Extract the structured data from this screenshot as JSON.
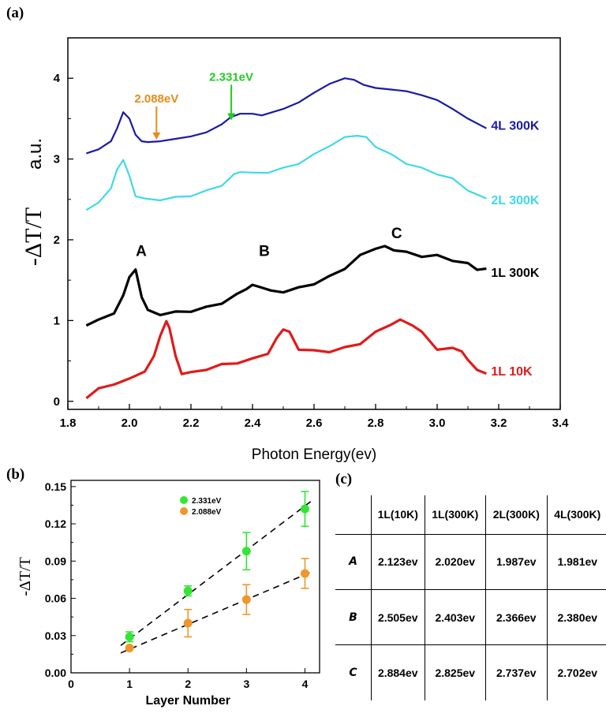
{
  "panel_labels": {
    "a": "(a)",
    "b": "(b)",
    "c": "(c)"
  },
  "chart_data": [
    {
      "type": "line",
      "panel": "(a)",
      "xlabel": "Photon Energy(ev)",
      "ylabel": "-ΔT/T",
      "ylabel_unit": "a.u.",
      "xlim": [
        1.8,
        3.4
      ],
      "ylim": [
        -0.1,
        4.5
      ],
      "xticks": [
        "1.8",
        "2.0",
        "2.2",
        "2.4",
        "2.6",
        "2.8",
        "3.0",
        "3.2",
        "3.4"
      ],
      "yticks": [
        "0",
        "1",
        "2",
        "3",
        "4"
      ],
      "series": [
        {
          "name": "4L 300K",
          "color": "#1a1aa6",
          "x": [
            1.86,
            1.9,
            1.94,
            1.96,
            1.98,
            2.0,
            2.02,
            2.04,
            2.06,
            2.1,
            2.15,
            2.2,
            2.25,
            2.3,
            2.33,
            2.36,
            2.4,
            2.43,
            2.5,
            2.55,
            2.6,
            2.65,
            2.7,
            2.73,
            2.76,
            2.8,
            2.85,
            2.9,
            2.95,
            3.0,
            3.05,
            3.1,
            3.16
          ],
          "y": [
            3.07,
            3.12,
            3.22,
            3.38,
            3.58,
            3.5,
            3.3,
            3.22,
            3.21,
            3.22,
            3.25,
            3.28,
            3.33,
            3.43,
            3.52,
            3.56,
            3.56,
            3.54,
            3.62,
            3.7,
            3.82,
            3.93,
            4.0,
            3.98,
            3.92,
            3.88,
            3.86,
            3.84,
            3.79,
            3.73,
            3.62,
            3.5,
            3.38
          ]
        },
        {
          "name": "2L 300K",
          "color": "#3fd9e8",
          "x": [
            1.86,
            1.9,
            1.94,
            1.96,
            1.98,
            2.0,
            2.02,
            2.05,
            2.1,
            2.15,
            2.2,
            2.25,
            2.3,
            2.34,
            2.36,
            2.4,
            2.45,
            2.5,
            2.55,
            2.6,
            2.65,
            2.7,
            2.74,
            2.77,
            2.8,
            2.85,
            2.9,
            2.95,
            3.0,
            3.05,
            3.1,
            3.16
          ],
          "y": [
            2.38,
            2.45,
            2.65,
            2.86,
            3.0,
            2.78,
            2.55,
            2.5,
            2.5,
            2.52,
            2.55,
            2.6,
            2.68,
            2.8,
            2.85,
            2.82,
            2.84,
            2.88,
            2.95,
            3.05,
            3.17,
            3.26,
            3.3,
            3.26,
            3.16,
            3.05,
            2.95,
            2.88,
            2.82,
            2.75,
            2.62,
            2.5
          ]
        },
        {
          "name": "1L 300K",
          "color": "#000000",
          "x": [
            1.86,
            1.9,
            1.95,
            1.98,
            2.0,
            2.02,
            2.04,
            2.06,
            2.1,
            2.15,
            2.2,
            2.25,
            2.3,
            2.35,
            2.38,
            2.4,
            2.43,
            2.46,
            2.5,
            2.55,
            2.6,
            2.65,
            2.7,
            2.75,
            2.8,
            2.83,
            2.86,
            2.9,
            2.95,
            3.0,
            3.05,
            3.1,
            3.13,
            3.16
          ],
          "y": [
            0.95,
            1.0,
            1.1,
            1.3,
            1.55,
            1.62,
            1.3,
            1.12,
            1.08,
            1.1,
            1.12,
            1.16,
            1.22,
            1.32,
            1.4,
            1.43,
            1.42,
            1.36,
            1.36,
            1.4,
            1.46,
            1.54,
            1.65,
            1.8,
            1.9,
            1.91,
            1.88,
            1.84,
            1.8,
            1.8,
            1.75,
            1.7,
            1.64,
            1.63
          ]
        },
        {
          "name": "1L 10K",
          "color": "#e01b1b",
          "x": [
            1.86,
            1.9,
            1.95,
            2.0,
            2.05,
            2.08,
            2.1,
            2.12,
            2.13,
            2.15,
            2.17,
            2.2,
            2.25,
            2.3,
            2.35,
            2.4,
            2.45,
            2.48,
            2.5,
            2.52,
            2.55,
            2.6,
            2.65,
            2.7,
            2.75,
            2.8,
            2.85,
            2.88,
            2.92,
            2.95,
            3.0,
            3.05,
            3.08,
            3.1,
            3.13,
            3.16
          ],
          "y": [
            0.05,
            0.15,
            0.22,
            0.27,
            0.38,
            0.55,
            0.82,
            0.98,
            0.92,
            0.55,
            0.35,
            0.35,
            0.4,
            0.45,
            0.48,
            0.52,
            0.6,
            0.78,
            0.9,
            0.85,
            0.65,
            0.62,
            0.62,
            0.66,
            0.72,
            0.85,
            0.96,
            1.0,
            0.95,
            0.85,
            0.65,
            0.65,
            0.63,
            0.5,
            0.4,
            0.33
          ]
        }
      ],
      "annotations": [
        {
          "text": "A",
          "x": 2.0,
          "y": 1.8
        },
        {
          "text": "B",
          "x": 2.4,
          "y": 1.8
        },
        {
          "text": "C",
          "x": 2.83,
          "y": 2.02
        },
        {
          "text": "2.088eV",
          "x": 2.088,
          "arrow_to_y": 3.24,
          "color": "#e88a1a"
        },
        {
          "text": "2.331eV",
          "x": 2.331,
          "arrow_to_y": 3.48,
          "color": "#22cc22"
        }
      ]
    },
    {
      "type": "scatter",
      "panel": "(b)",
      "xlabel": "Layer Number",
      "ylabel": "-ΔT/T",
      "xlim": [
        0,
        4.25
      ],
      "ylim": [
        0.0,
        0.155
      ],
      "xticks": [
        "0",
        "1",
        "2",
        "3",
        "4"
      ],
      "yticks": [
        "0.00",
        "0.03",
        "0.06",
        "0.09",
        "0.12",
        "0.15"
      ],
      "series": [
        {
          "name": "2.331eV",
          "color": "#33e633",
          "x": [
            1,
            2,
            3,
            4
          ],
          "y": [
            0.029,
            0.066,
            0.098,
            0.132
          ],
          "err": [
            0.004,
            0.004,
            0.015,
            0.014
          ],
          "fit": [
            0.022,
            0.138
          ]
        },
        {
          "name": "2.088eV",
          "color": "#f0962a",
          "x": [
            1,
            2,
            3,
            4
          ],
          "y": [
            0.02,
            0.04,
            0.059,
            0.08
          ],
          "err": [
            0.0,
            0.011,
            0.012,
            0.012
          ],
          "fit": [
            0.016,
            0.081
          ]
        }
      ]
    },
    {
      "type": "table",
      "panel": "(c)",
      "columns": [
        "",
        "1L(10K)",
        "1L(300K)",
        "2L(300K)",
        "4L(300K)"
      ],
      "rows": [
        {
          "label": "A",
          "cells": [
            "2.123ev",
            "2.020ev",
            "1.987ev",
            "1.981ev"
          ]
        },
        {
          "label": "B",
          "cells": [
            "2.505ev",
            "2.403ev",
            "2.366ev",
            "2.380ev"
          ]
        },
        {
          "label": "C",
          "cells": [
            "2.884ev",
            "2.825ev",
            "2.737ev",
            "2.702ev"
          ]
        }
      ]
    }
  ]
}
